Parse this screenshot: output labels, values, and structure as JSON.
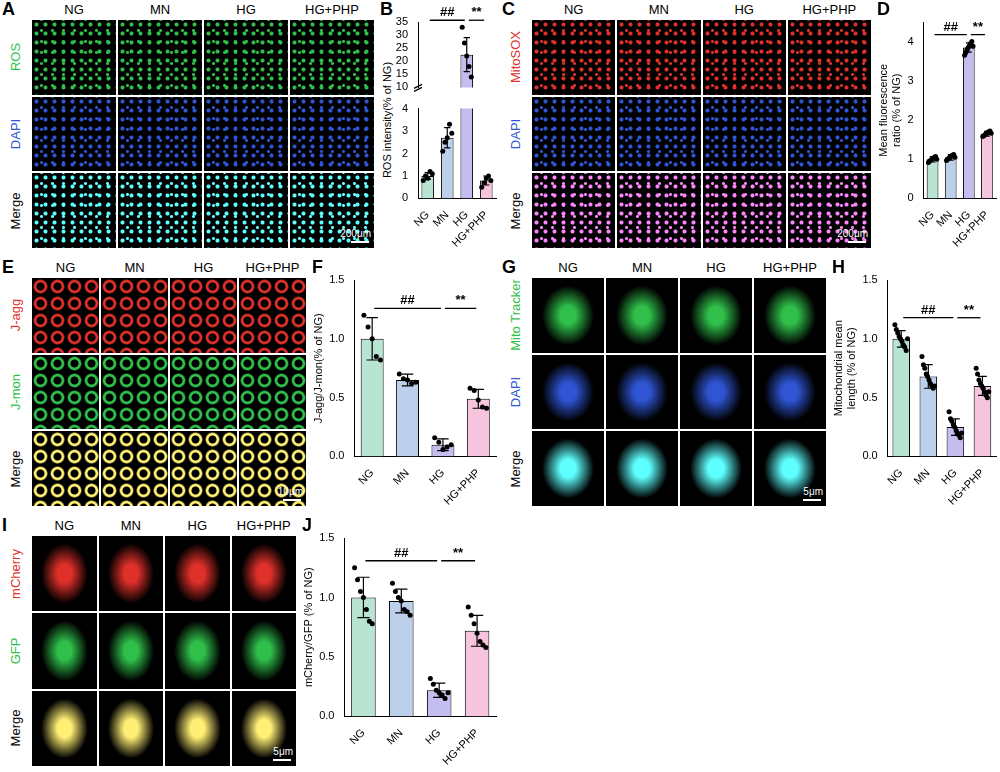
{
  "image_panels": [
    {
      "panel": "A",
      "columns": [
        "NG",
        "MN",
        "HG",
        "HG+PHP"
      ],
      "rows": [
        {
          "label": "ROS",
          "color": "#2fbf4a"
        },
        {
          "label": "DAPI",
          "color": "#2f55d4"
        },
        {
          "label": "Merge",
          "color": "#000000"
        }
      ],
      "scale_bar": "200μm"
    },
    {
      "panel": "C",
      "columns": [
        "NG",
        "MN",
        "HG",
        "HG+PHP"
      ],
      "rows": [
        {
          "label": "MitoSOX",
          "color": "#e0302a"
        },
        {
          "label": "DAPI",
          "color": "#2f55d4"
        },
        {
          "label": "Merge",
          "color": "#000000"
        }
      ],
      "scale_bar": "200μm"
    },
    {
      "panel": "E",
      "columns": [
        "NG",
        "MN",
        "HG",
        "HG+PHP"
      ],
      "rows": [
        {
          "label": "J-agg",
          "color": "#e0302a"
        },
        {
          "label": "J-mon",
          "color": "#2fbf4a"
        },
        {
          "label": "Merge",
          "color": "#000000"
        }
      ],
      "scale_bar": "10μm"
    },
    {
      "panel": "G",
      "columns": [
        "NG",
        "MN",
        "HG",
        "HG+PHP"
      ],
      "rows": [
        {
          "label": "Mito Tracker",
          "color": "#2fbf4a"
        },
        {
          "label": "DAPI",
          "color": "#2f55d4"
        },
        {
          "label": "Merge",
          "color": "#000000"
        }
      ],
      "scale_bar": "5μm"
    },
    {
      "panel": "I",
      "columns": [
        "NG",
        "MN",
        "HG",
        "HG+PHP"
      ],
      "rows": [
        {
          "label": "mCherry",
          "color": "#e0302a"
        },
        {
          "label": "GFP",
          "color": "#2fbf4a"
        },
        {
          "label": "Merge",
          "color": "#000000"
        }
      ],
      "scale_bar": "5μm"
    }
  ],
  "chart_data": [
    {
      "panel": "B",
      "type": "bar",
      "y_label": "ROS intensity(% of NG)",
      "categories": [
        "NG",
        "MN",
        "HG",
        "HG+PHP"
      ],
      "values": [
        1.0,
        2.7,
        22.5,
        0.8
      ],
      "errors": [
        0.15,
        0.45,
        6.5,
        0.2
      ],
      "points": [
        [
          0.8,
          1.0,
          0.9,
          1.2,
          1.1
        ],
        [
          2.1,
          2.5,
          2.7,
          3.3,
          2.9
        ],
        [
          33,
          27,
          22,
          18,
          14
        ],
        [
          0.5,
          0.7,
          0.9,
          1.0,
          0.8
        ]
      ],
      "colors": [
        "#b8e4d2",
        "#bcd0ec",
        "#c4bdf0",
        "#f6c4dc"
      ],
      "y_segments": [
        {
          "ylim": [
            0,
            4
          ],
          "yticks": [
            0,
            1,
            2,
            3,
            4
          ]
        },
        {
          "ylim": [
            10,
            35
          ],
          "yticks": [
            10,
            15,
            20,
            25,
            30,
            35
          ]
        }
      ],
      "annotations": [
        {
          "text": "##",
          "from": 0,
          "to": 2
        },
        {
          "text": "**",
          "from": 2,
          "to": 3
        }
      ],
      "grid": false
    },
    {
      "panel": "D",
      "type": "bar",
      "y_label": "Mean fluorescence ratio (% of NG)",
      "categories": [
        "NG",
        "MN",
        "HG",
        "HG+PHP"
      ],
      "values": [
        1.0,
        1.05,
        3.85,
        1.65
      ],
      "errors": [
        0.07,
        0.07,
        0.12,
        0.06
      ],
      "points": [
        [
          0.92,
          0.95,
          0.98,
          1.0,
          1.02,
          1.05,
          1.07,
          1.0
        ],
        [
          0.97,
          1.0,
          1.03,
          1.05,
          1.08,
          1.1,
          1.12,
          1.05
        ],
        [
          3.65,
          3.72,
          3.8,
          3.85,
          3.9,
          3.95,
          4.0,
          3.88
        ],
        [
          1.58,
          1.6,
          1.63,
          1.65,
          1.68,
          1.7,
          1.72,
          1.66
        ]
      ],
      "colors": [
        "#b8e4d2",
        "#bcd0ec",
        "#c4bdf0",
        "#f6c4dc"
      ],
      "ylim": [
        0,
        4.5
      ],
      "yticks": [
        0,
        1,
        2,
        3,
        4
      ],
      "annotations": [
        {
          "text": "##",
          "from": 0,
          "to": 2
        },
        {
          "text": "**",
          "from": 2,
          "to": 3
        }
      ],
      "grid": false
    },
    {
      "panel": "F",
      "type": "bar",
      "y_label": "J-agg/J-mon(% of NG)",
      "categories": [
        "NG",
        "MN",
        "HG",
        "HG+PHP"
      ],
      "values": [
        1.0,
        0.65,
        0.1,
        0.49
      ],
      "errors": [
        0.18,
        0.05,
        0.05,
        0.08
      ],
      "points": [
        [
          1.2,
          1.1,
          1.0,
          0.85,
          0.82
        ],
        [
          0.7,
          0.66,
          0.65,
          0.62,
          0.63
        ],
        [
          0.16,
          0.12,
          0.06,
          0.08,
          0.1
        ],
        [
          0.58,
          0.56,
          0.48,
          0.42,
          0.41
        ]
      ],
      "colors": [
        "#b8e4d2",
        "#bcd0ec",
        "#c4bdf0",
        "#f6c4dc"
      ],
      "ylim": [
        0,
        1.5
      ],
      "yticks": [
        {
          "value": 0,
          "label": "0.0"
        },
        {
          "value": 0.5,
          "label": "0.5"
        },
        {
          "value": 1,
          "label": "1.0"
        },
        {
          "value": 1.5,
          "label": "1.5"
        }
      ],
      "annotations": [
        {
          "text": "##",
          "from": 0,
          "to": 2
        },
        {
          "text": "**",
          "from": 2,
          "to": 3
        }
      ],
      "grid": false
    },
    {
      "panel": "H",
      "type": "bar",
      "y_label": "Mitochondrial mean length (% of NG)",
      "categories": [
        "NG",
        "MN",
        "HG",
        "HG+PHP"
      ],
      "values": [
        1.0,
        0.68,
        0.25,
        0.6
      ],
      "errors": [
        0.07,
        0.1,
        0.07,
        0.08
      ],
      "points": [
        [
          1.12,
          1.08,
          1.05,
          1.02,
          1.0,
          0.98,
          0.95,
          0.93,
          0.9,
          1.0
        ],
        [
          0.85,
          0.78,
          0.75,
          0.7,
          0.68,
          0.65,
          0.62,
          0.6,
          0.58,
          0.6
        ],
        [
          0.38,
          0.32,
          0.3,
          0.27,
          0.25,
          0.22,
          0.2,
          0.18,
          0.16,
          0.2
        ],
        [
          0.75,
          0.7,
          0.65,
          0.62,
          0.6,
          0.58,
          0.55,
          0.52,
          0.5,
          0.55
        ]
      ],
      "colors": [
        "#b8e4d2",
        "#bcd0ec",
        "#c4bdf0",
        "#f6c4dc"
      ],
      "ylim": [
        0,
        1.5
      ],
      "yticks": [
        {
          "value": 0,
          "label": "0.0"
        },
        {
          "value": 0.5,
          "label": "0.5"
        },
        {
          "value": 1,
          "label": "1.0"
        },
        {
          "value": 1.5,
          "label": "1.5"
        }
      ],
      "annotations": [
        {
          "text": "##",
          "from": 0,
          "to": 2
        },
        {
          "text": "**",
          "from": 2,
          "to": 3
        }
      ],
      "grid": false
    },
    {
      "panel": "J",
      "type": "bar",
      "y_label": "mCherry/GFP (% of NG)",
      "categories": [
        "NG",
        "MN",
        "HG",
        "HG+PHP"
      ],
      "values": [
        1.0,
        0.97,
        0.22,
        0.72
      ],
      "errors": [
        0.17,
        0.1,
        0.06,
        0.13
      ],
      "points": [
        [
          1.25,
          1.15,
          1.05,
          1.0,
          0.9,
          0.8,
          0.78
        ],
        [
          1.12,
          1.05,
          1.0,
          0.97,
          0.9,
          0.88,
          0.85
        ],
        [
          0.32,
          0.27,
          0.22,
          0.2,
          0.18,
          0.15,
          0.2
        ],
        [
          0.92,
          0.85,
          0.78,
          0.7,
          0.63,
          0.6,
          0.58
        ]
      ],
      "colors": [
        "#b8e4d2",
        "#bcd0ec",
        "#c4bdf0",
        "#f6c4dc"
      ],
      "ylim": [
        0,
        1.5
      ],
      "yticks": [
        {
          "value": 0,
          "label": "0.0"
        },
        {
          "value": 0.5,
          "label": "0.5"
        },
        {
          "value": 1,
          "label": "1.0"
        },
        {
          "value": 1.5,
          "label": "1.5"
        }
      ],
      "annotations": [
        {
          "text": "##",
          "from": 0,
          "to": 2
        },
        {
          "text": "**",
          "from": 2,
          "to": 3
        }
      ],
      "grid": false
    }
  ]
}
